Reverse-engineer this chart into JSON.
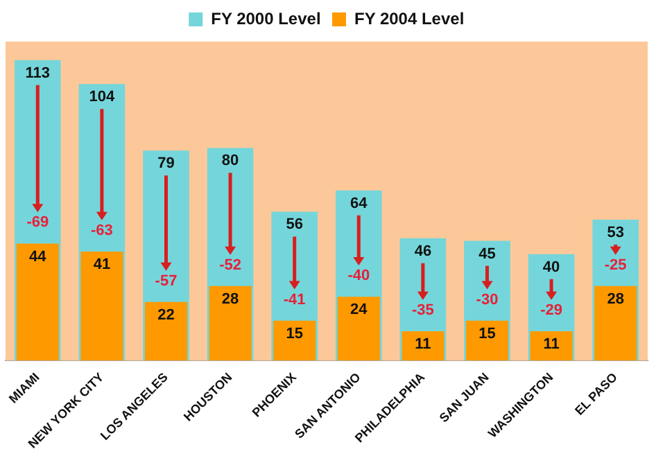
{
  "chart_data": {
    "type": "bar",
    "categories": [
      "MIAMI",
      "NEW YORK CITY",
      "LOS ANGELES",
      "HOUSTON",
      "PHOENIX",
      "SAN ANTONIO",
      "PHILADELPHIA",
      "SAN JUAN",
      "WASHINGTON",
      "EL PASO"
    ],
    "series": [
      {
        "name": "FY 2000 Level",
        "color": "#74d6da",
        "values": [
          113,
          104,
          79,
          80,
          56,
          64,
          46,
          45,
          40,
          53
        ]
      },
      {
        "name": "FY 2004 Level",
        "color": "#ff9900",
        "values": [
          44,
          41,
          22,
          28,
          15,
          24,
          11,
          15,
          11,
          28
        ]
      }
    ],
    "data_labels": true,
    "legend": "top",
    "grid": false,
    "tick_labels": "x",
    "annotations": [
      {
        "text": "-69",
        "x": "MIAMI",
        "y": 49
      },
      {
        "text": "-63",
        "x": "NEW YORK CITY",
        "y": 46
      },
      {
        "text": "-57",
        "x": "LOS ANGELES",
        "y": 27
      },
      {
        "text": "-52",
        "x": "HOUSTON",
        "y": 33
      },
      {
        "text": "-41",
        "x": "PHOENIX",
        "y": 20
      },
      {
        "text": "-40",
        "x": "SAN ANTONIO",
        "y": 29
      },
      {
        "text": "-35",
        "x": "PHILADELPHIA",
        "y": 16
      },
      {
        "text": "-30",
        "x": "SAN JUAN",
        "y": 20
      },
      {
        "text": "-29",
        "x": "WASHINGTON",
        "y": 16
      },
      {
        "text": "-25",
        "x": "EL PASO",
        "y": 33
      }
    ]
  }
}
